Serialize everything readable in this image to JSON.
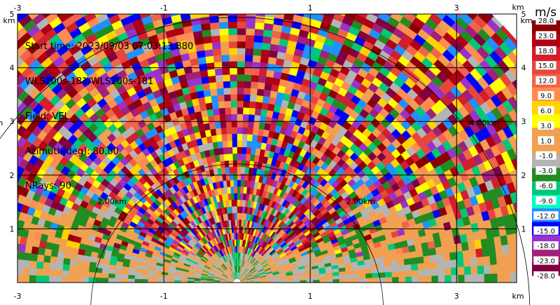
{
  "info": {
    "start_time": "Start time: 2023/09/03 07:03:13.880",
    "site": "WLS200s-181/WLS200s-181",
    "field": "Field: VEL",
    "azimuth": "Azimuth(deg): 80.00",
    "nrays": "NRays: 90"
  },
  "colorbar": {
    "unit": "m/s",
    "ticks": [
      "28.0",
      "23.0",
      "18.0",
      "15.0",
      "12.0",
      "9.0",
      "6.0",
      "3.0",
      "1.0",
      "-1.0",
      "-3.0",
      "-6.0",
      "-9.0",
      "-12.0",
      "-15.0",
      "-18.0",
      "-23.0",
      "-28.0"
    ],
    "colors": [
      "#8b0000",
      "#b00014",
      "#d21e2d",
      "#e6463c",
      "#f0644b",
      "#ff8c50",
      "#ffd200",
      "#ffff00",
      "#f0a050",
      "#f0a050",
      "#b4b4b4",
      "#228b22",
      "#00c878",
      "#00ffc8",
      "#1e90ff",
      "#0000ff",
      "#9932cc",
      "#a0207a",
      "#800040"
    ]
  },
  "chart_data": {
    "type": "heatmap",
    "title": "",
    "field": "VEL",
    "units": "m/s",
    "azimuth_deg": 80.0,
    "n_rays": 90,
    "x_unit_label": "km",
    "y_unit_label": "km",
    "x_ticks": [
      "-3",
      "-1",
      "1",
      "3"
    ],
    "y_ticks": [
      "1",
      "2",
      "3",
      "4",
      "5"
    ],
    "x_range_km": [
      -3.0,
      3.82
    ],
    "y_range_km": [
      0.0,
      5.0
    ],
    "range_rings_km": [
      2.0,
      4.0
    ],
    "ring_labels": [
      "2.00km",
      "4.00km"
    ],
    "max_range_km": 5.05,
    "grid": true,
    "legend": "colorbar-right"
  }
}
